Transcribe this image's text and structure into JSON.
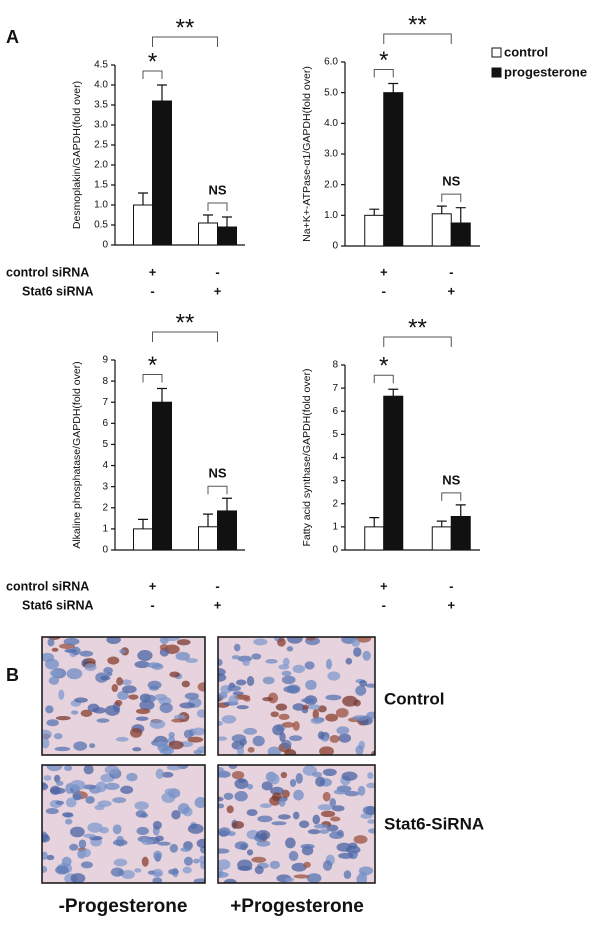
{
  "panel_a_label": "A",
  "chart_data": [
    {
      "type": "bar",
      "y_label": "Desmoplakin/GAPDH(fold over)",
      "categories": [
        null,
        null
      ],
      "series": [
        {
          "color": "#ffffff",
          "values": [
            1.0,
            0.55
          ],
          "errors": [
            0.3,
            0.2
          ]
        },
        {
          "color": "#111111",
          "values": [
            3.6,
            0.45
          ],
          "errors": [
            0.4,
            0.25
          ]
        }
      ],
      "ylim": [
        0,
        4.5
      ],
      "yticks": [
        0,
        0.5,
        {
          "value": 1,
          "label": "1.0"
        },
        1.5,
        {
          "value": 2,
          "label": "2.0"
        },
        2.5,
        {
          "value": 3,
          "label": "3.0"
        },
        3.5,
        {
          "value": 4,
          "label": "4.0"
        },
        4.5
      ],
      "annotations": [
        "*",
        "**",
        "NS"
      ],
      "treatments": [
        {
          "label": "control siRNA",
          "signs": [
            "+",
            "-"
          ]
        },
        {
          "label": "Stat6 siRNA",
          "signs": [
            "-",
            "+"
          ]
        }
      ]
    },
    {
      "type": "bar",
      "y_label": "Na+K+-ATPase-α1/GAPDH(fold over)",
      "categories": [
        null,
        null
      ],
      "series": [
        {
          "name": "control",
          "color": "#ffffff",
          "values": [
            1.0,
            1.05
          ],
          "errors": [
            0.2,
            0.25
          ]
        },
        {
          "name": "progesterone",
          "color": "#111111",
          "values": [
            5.0,
            0.75
          ],
          "errors": [
            0.3,
            0.5
          ]
        }
      ],
      "ylim": [
        0,
        6
      ],
      "yticks": [
        0,
        {
          "value": 1,
          "label": "1.0"
        },
        {
          "value": 2,
          "label": "2.0"
        },
        {
          "value": 3,
          "label": "3.0"
        },
        {
          "value": 4,
          "label": "4.0"
        },
        {
          "value": 5,
          "label": "5.0"
        },
        {
          "value": 6,
          "label": "6.0"
        }
      ],
      "annotations": [
        "*",
        "**",
        "NS"
      ],
      "treatments": [
        {
          "signs": [
            "+",
            "-"
          ]
        },
        {
          "signs": [
            "-",
            "+"
          ]
        }
      ]
    },
    {
      "type": "bar",
      "y_label": "Alkaline phosphatase/GAPDH(fold over)",
      "categories": [
        null,
        null
      ],
      "series": [
        {
          "color": "#ffffff",
          "values": [
            1.0,
            1.1
          ],
          "errors": [
            0.45,
            0.6
          ]
        },
        {
          "color": "#111111",
          "values": [
            7.0,
            1.85
          ],
          "errors": [
            0.65,
            0.6
          ]
        }
      ],
      "ylim": [
        0,
        9
      ],
      "yticks": [
        0,
        1,
        2,
        3,
        4,
        5,
        6,
        7,
        8,
        9
      ],
      "annotations": [
        "*",
        "**",
        "NS"
      ],
      "treatments": [
        {
          "label": "control siRNA",
          "signs": [
            "+",
            "-"
          ]
        },
        {
          "label": "Stat6 siRNA",
          "signs": [
            "-",
            "+"
          ]
        }
      ]
    },
    {
      "type": "bar",
      "y_label": "Fatty acid synthase/GAPDH(fold over)",
      "categories": [
        null,
        null
      ],
      "series": [
        {
          "color": "#ffffff",
          "values": [
            1.0,
            1.0
          ],
          "errors": [
            0.4,
            0.25
          ]
        },
        {
          "color": "#111111",
          "values": [
            6.65,
            1.45
          ],
          "errors": [
            0.3,
            0.5
          ]
        }
      ],
      "ylim": [
        0,
        8
      ],
      "yticks": [
        0,
        1,
        2,
        3,
        4,
        5,
        6,
        7,
        8
      ],
      "annotations": [
        "*",
        "**",
        "NS"
      ],
      "treatments": [
        {
          "signs": [
            "+",
            "-"
          ]
        },
        {
          "signs": [
            "-",
            "+"
          ]
        }
      ]
    }
  ],
  "panel_b": {
    "label": "B",
    "row_labels": [
      "Control",
      "Stat6-SiRNA"
    ],
    "column_labels": [
      "-Progesterone",
      "+Progesterone"
    ]
  }
}
